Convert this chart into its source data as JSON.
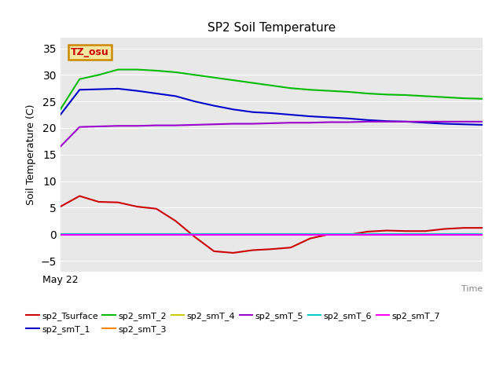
{
  "title": "SP2 Soil Temperature",
  "xlabel": "Time",
  "ylabel": "Soil Temperature (C)",
  "xlim_label": "May 22",
  "ylim": [
    -7,
    37
  ],
  "yticks": [
    -5,
    0,
    5,
    10,
    15,
    20,
    25,
    30,
    35
  ],
  "bg_color": "#e8e8e8",
  "annotation_text": "TZ_osu",
  "annotation_bg": "#f5e6a0",
  "annotation_border": "#cc8800",
  "annotation_text_color": "#cc0000",
  "series_order": [
    "sp2_Tsurface",
    "sp2_smT_1",
    "sp2_smT_2",
    "sp2_smT_3",
    "sp2_smT_4",
    "sp2_smT_5",
    "sp2_smT_6",
    "sp2_smT_7"
  ],
  "series": {
    "sp2_Tsurface": {
      "color": "#cc0000",
      "values": [
        5.2,
        7.2,
        6.1,
        6.0,
        5.2,
        4.8,
        2.5,
        -0.5,
        -3.2,
        -3.5,
        -3.0,
        -2.8,
        -2.5,
        -0.8,
        0.0,
        -0.1,
        0.5,
        0.7,
        0.6,
        0.6,
        1.0,
        1.2,
        1.2
      ]
    },
    "sp2_smT_1": {
      "color": "#0000cc",
      "values": [
        22.5,
        27.2,
        27.3,
        27.4,
        27.0,
        26.5,
        26.0,
        25.0,
        24.2,
        23.5,
        23.0,
        22.8,
        22.5,
        22.2,
        22.0,
        21.8,
        21.5,
        21.3,
        21.2,
        21.0,
        20.8,
        20.7,
        20.6
      ]
    },
    "sp2_smT_2": {
      "color": "#00bb00",
      "values": [
        23.5,
        29.2,
        30.0,
        31.0,
        31.0,
        30.8,
        30.5,
        30.0,
        29.5,
        29.0,
        28.5,
        28.0,
        27.5,
        27.2,
        27.0,
        26.8,
        26.5,
        26.3,
        26.2,
        26.0,
        25.8,
        25.6,
        25.5
      ]
    },
    "sp2_smT_3": {
      "color": "#ff8800",
      "values": [
        0.0,
        0.0,
        0.0,
        0.0,
        0.0,
        0.0,
        0.0,
        0.0,
        0.0,
        0.0,
        0.0,
        0.0,
        0.0,
        0.0,
        0.0,
        0.0,
        0.0,
        0.0,
        0.0,
        0.0,
        0.0,
        0.0,
        0.0
      ]
    },
    "sp2_smT_4": {
      "color": "#cccc00",
      "values": [
        0.0,
        0.0,
        0.0,
        0.0,
        0.0,
        0.0,
        0.0,
        0.0,
        0.0,
        0.0,
        0.0,
        0.0,
        0.0,
        0.0,
        0.0,
        0.0,
        0.0,
        0.0,
        0.0,
        0.0,
        0.0,
        0.0,
        0.0
      ]
    },
    "sp2_smT_5": {
      "color": "#9900cc",
      "values": [
        16.5,
        20.2,
        20.3,
        20.4,
        20.4,
        20.5,
        20.5,
        20.6,
        20.7,
        20.8,
        20.8,
        20.9,
        21.0,
        21.0,
        21.1,
        21.1,
        21.2,
        21.2,
        21.2,
        21.2,
        21.2,
        21.2,
        21.2
      ]
    },
    "sp2_smT_6": {
      "color": "#00cccc",
      "values": [
        0.0,
        0.0,
        0.0,
        0.0,
        0.0,
        0.0,
        0.0,
        0.0,
        0.0,
        0.0,
        0.0,
        0.0,
        0.0,
        0.0,
        0.0,
        0.0,
        0.0,
        0.0,
        0.0,
        0.0,
        0.0,
        0.0,
        0.0
      ]
    },
    "sp2_smT_7": {
      "color": "#ff00ff",
      "values": [
        -0.05,
        -0.05,
        -0.05,
        -0.05,
        -0.05,
        -0.05,
        -0.05,
        -0.05,
        -0.05,
        -0.05,
        -0.05,
        -0.05,
        -0.05,
        -0.05,
        -0.05,
        -0.05,
        -0.05,
        -0.05,
        -0.05,
        -0.05,
        -0.05,
        -0.05,
        -0.05
      ]
    }
  }
}
